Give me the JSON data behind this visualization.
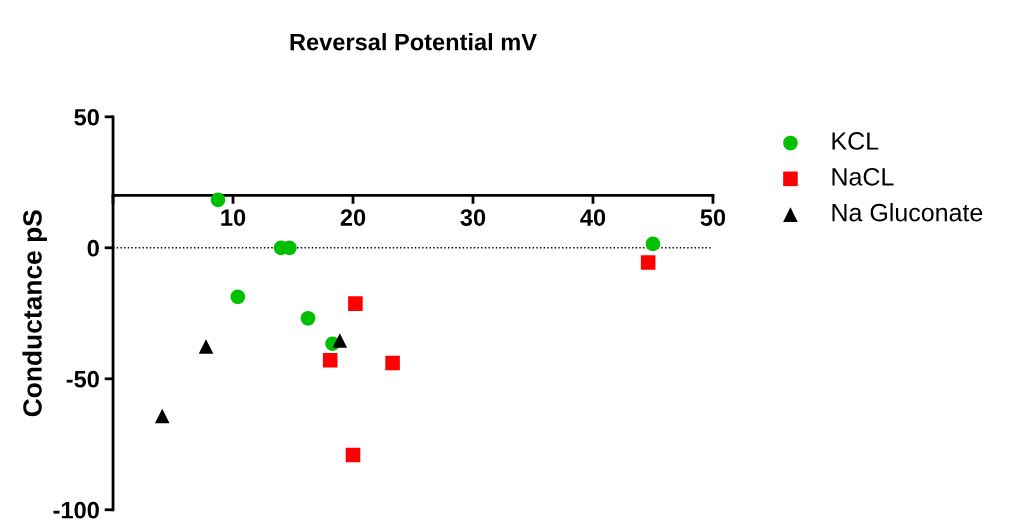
{
  "chart_data": {
    "type": "scatter",
    "title": "Reversal Potential mV",
    "ylabel": "Conductance pS",
    "xlim": [
      0,
      50
    ],
    "xticks": [
      {
        "value": 0,
        "label": null
      },
      10,
      20,
      30,
      40,
      50
    ],
    "ylim": [
      -100,
      50
    ],
    "yticks": [
      -100,
      -50,
      0,
      50
    ],
    "grid": false,
    "legend": "right",
    "ref_lines": [
      {
        "axis": "y",
        "value": 0,
        "line_style": "dotted",
        "color": "#000000"
      }
    ],
    "series": [
      {
        "name": "KCL",
        "color": "#00c000",
        "marker": "circle",
        "x": [
          8.75,
          14.0,
          14.7,
          10.4,
          16.25,
          18.3,
          45.0
        ],
        "values": [
          18.3,
          0,
          0,
          -18.7,
          -26.9,
          -36.6,
          1.5
        ]
      },
      {
        "name": "NaCL",
        "color": "#ff0000",
        "marker": "square",
        "x": [
          44.6,
          20.2,
          18.1,
          23.3,
          20.0
        ],
        "values": [
          -5.6,
          -21.3,
          -42.9,
          -44.0,
          -79.1
        ]
      },
      {
        "name": "Na Gluconate",
        "color": "#000000",
        "marker": "triangle",
        "x": [
          7.75,
          4.1,
          18.9
        ],
        "values": [
          -37.7,
          -64.2,
          -35.4
        ]
      }
    ]
  }
}
